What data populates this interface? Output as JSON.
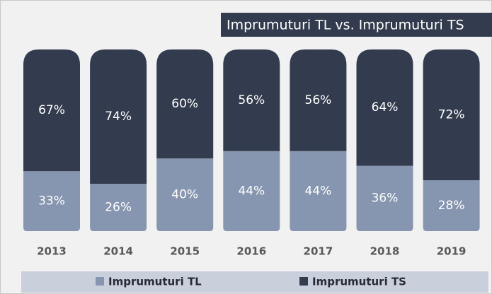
{
  "chart_data": {
    "type": "stacked_bar",
    "title": "Imprumuturi TL vs. Imprumuturi TS",
    "categories": [
      "2013",
      "2014",
      "2015",
      "2016",
      "2017",
      "2018",
      "2019"
    ],
    "ylim": [
      0,
      100
    ],
    "series": [
      {
        "name": "Imprumuturi TL",
        "color": "#8796b0",
        "values": [
          33,
          26,
          40,
          44,
          44,
          36,
          28
        ],
        "value_labels": [
          "33%",
          "26%",
          "40%",
          "44%",
          "44%",
          "36%",
          "28%"
        ]
      },
      {
        "name": "Imprumuturi TS",
        "color": "#333c4e",
        "values": [
          67,
          74,
          60,
          56,
          56,
          64,
          72
        ],
        "value_labels": [
          "67%",
          "74%",
          "60%",
          "56%",
          "56%",
          "64%",
          "72%"
        ]
      }
    ]
  }
}
